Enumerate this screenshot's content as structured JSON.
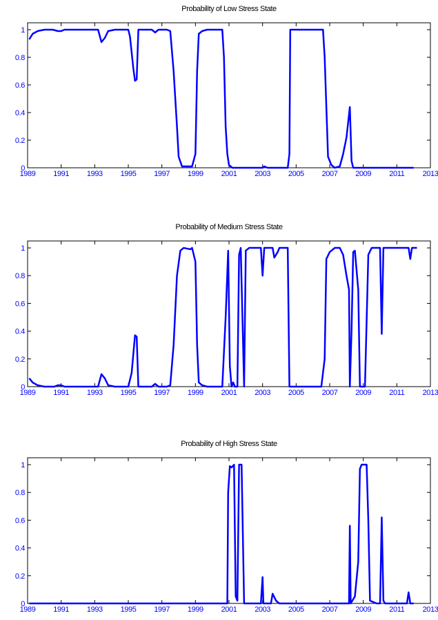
{
  "chart_data": [
    {
      "type": "line",
      "title": "Probability of Low Stress State",
      "color": "#0000ff",
      "x": [
        1989.1,
        1989.3,
        1989.6,
        1990,
        1990.5,
        1990.8,
        1991,
        1991.2,
        1993.2,
        1993.4,
        1993.6,
        1993.8,
        1994.2,
        1995.0,
        1995.1,
        1995.3,
        1995.4,
        1995.5,
        1995.6,
        1996.4,
        1996.6,
        1996.8,
        1997.3,
        1997.5,
        1997.7,
        1997.9,
        1998.0,
        1998.2,
        1998.5,
        1998.8,
        1999.0,
        1999.1,
        1999.2,
        1999.4,
        1999.7,
        2000.6,
        2000.7,
        2000.8,
        2000.9,
        2001.0,
        2001.2,
        2003.0,
        2003.1,
        2003.3,
        2004.5,
        2004.6,
        2004.65,
        2006.6,
        2006.7,
        2006.9,
        2007.1,
        2007.3,
        2007.6,
        2007.8,
        2008.0,
        2008.2,
        2008.3,
        2008.4,
        2012.0
      ],
      "values": [
        0.93,
        0.97,
        0.99,
        1.0,
        1.0,
        0.99,
        0.99,
        1.0,
        1.0,
        0.91,
        0.94,
        0.99,
        1.0,
        1.0,
        0.95,
        0.72,
        0.63,
        0.64,
        1.0,
        1.0,
        0.98,
        1.0,
        1.0,
        0.99,
        0.7,
        0.3,
        0.08,
        0.01,
        0.01,
        0.01,
        0.1,
        0.7,
        0.97,
        0.99,
        1.0,
        1.0,
        0.8,
        0.3,
        0.1,
        0.02,
        0.0,
        0.0,
        0.01,
        0.0,
        0.0,
        0.1,
        1.0,
        1.0,
        0.8,
        0.08,
        0.02,
        0.0,
        0.01,
        0.1,
        0.22,
        0.44,
        0.05,
        0.0,
        0.0
      ],
      "xlim": [
        1989,
        2013
      ],
      "xticks": [
        1989,
        1991,
        1993,
        1995,
        1997,
        1999,
        2001,
        2003,
        2005,
        2007,
        2009,
        2011,
        2013
      ],
      "ylim": [
        0,
        1.05
      ],
      "yticks": [
        0,
        0.2,
        0.4,
        0.6,
        0.8,
        1
      ]
    },
    {
      "type": "line",
      "title": "Probability of Medium Stress State",
      "color": "#0000ff",
      "x": [
        1989.1,
        1989.3,
        1989.6,
        1990,
        1990.6,
        1990.8,
        1991,
        1991.2,
        1993.2,
        1993.4,
        1993.6,
        1993.8,
        1994.2,
        1995.0,
        1995.2,
        1995.4,
        1995.5,
        1995.6,
        1996.4,
        1996.6,
        1996.8,
        1997.3,
        1997.5,
        1997.7,
        1997.9,
        1998.1,
        1998.3,
        1998.7,
        1998.8,
        1999.0,
        1999.1,
        1999.2,
        1999.4,
        1999.7,
        2000.6,
        2000.8,
        2000.95,
        2001.05,
        2001.15,
        2001.25,
        2001.35,
        2001.5,
        2001.6,
        2001.7,
        2001.8,
        2001.9,
        2002.0,
        2002.2,
        2002.9,
        2003.0,
        2003.1,
        2003.6,
        2003.7,
        2003.9,
        2004.0,
        2004.5,
        2004.6,
        2006.5,
        2006.7,
        2006.8,
        2007.0,
        2007.3,
        2007.6,
        2007.8,
        2008.0,
        2008.15,
        2008.2,
        2008.3,
        2008.4,
        2008.5,
        2008.7,
        2008.8,
        2009.1,
        2009.3,
        2009.5,
        2010.0,
        2010.1,
        2010.2,
        2011.7,
        2011.8,
        2011.9,
        2012.2
      ],
      "values": [
        0.06,
        0.03,
        0.01,
        0.0,
        0.0,
        0.01,
        0.01,
        0.0,
        0.0,
        0.09,
        0.06,
        0.01,
        0.0,
        0.0,
        0.1,
        0.37,
        0.36,
        0.0,
        0.0,
        0.02,
        0.0,
        0.0,
        0.01,
        0.3,
        0.8,
        0.98,
        1.0,
        0.99,
        1.0,
        0.9,
        0.3,
        0.03,
        0.01,
        0.0,
        0.0,
        0.5,
        0.98,
        0.15,
        0.0,
        0.03,
        0.0,
        0.0,
        0.95,
        1.0,
        0.5,
        0.0,
        0.98,
        1.0,
        1.0,
        0.8,
        1.0,
        1.0,
        0.93,
        0.97,
        1.0,
        1.0,
        0.0,
        0.0,
        0.2,
        0.92,
        0.97,
        1.0,
        1.0,
        0.95,
        0.8,
        0.7,
        0.0,
        0.4,
        0.97,
        0.98,
        0.7,
        0.0,
        0.0,
        0.95,
        1.0,
        1.0,
        0.38,
        1.0,
        1.0,
        0.92,
        1.0,
        1.0
      ],
      "xlim": [
        1989,
        2013
      ],
      "xticks": [
        1989,
        1991,
        1993,
        1995,
        1997,
        1999,
        2001,
        2003,
        2005,
        2007,
        2009,
        2011,
        2013
      ],
      "ylim": [
        0,
        1.05
      ],
      "yticks": [
        0,
        0.2,
        0.4,
        0.6,
        0.8,
        1
      ]
    },
    {
      "type": "line",
      "title": "Probability of High Stress State",
      "color": "#0000ff",
      "x": [
        1989.1,
        2000.9,
        2000.95,
        2001.05,
        2001.15,
        2001.3,
        2001.4,
        2001.5,
        2001.6,
        2001.75,
        2001.9,
        2002.9,
        2003.0,
        2003.05,
        2003.5,
        2003.6,
        2003.8,
        2004.0,
        2008.15,
        2008.2,
        2008.25,
        2008.5,
        2008.7,
        2008.8,
        2008.9,
        2009.2,
        2009.3,
        2009.4,
        2009.8,
        2010.0,
        2010.1,
        2010.2,
        2010.3,
        2011.6,
        2011.7,
        2011.8,
        2012.0
      ],
      "values": [
        0.0,
        0.0,
        0.8,
        0.99,
        0.98,
        1.0,
        0.05,
        0.02,
        1.0,
        1.0,
        0.0,
        0.0,
        0.19,
        0.0,
        0.0,
        0.07,
        0.02,
        0.0,
        0.0,
        0.56,
        0.0,
        0.05,
        0.3,
        0.97,
        1.0,
        1.0,
        0.6,
        0.02,
        0.0,
        0.0,
        0.62,
        0.02,
        0.0,
        0.0,
        0.08,
        0.0,
        0.0
      ],
      "xlim": [
        1989,
        2013
      ],
      "xticks": [
        1989,
        1991,
        1993,
        1995,
        1997,
        1999,
        2001,
        2003,
        2005,
        2007,
        2009,
        2011,
        2013
      ],
      "ylim": [
        0,
        1.05
      ],
      "yticks": [
        0,
        0.2,
        0.4,
        0.6,
        0.8,
        1
      ]
    }
  ]
}
